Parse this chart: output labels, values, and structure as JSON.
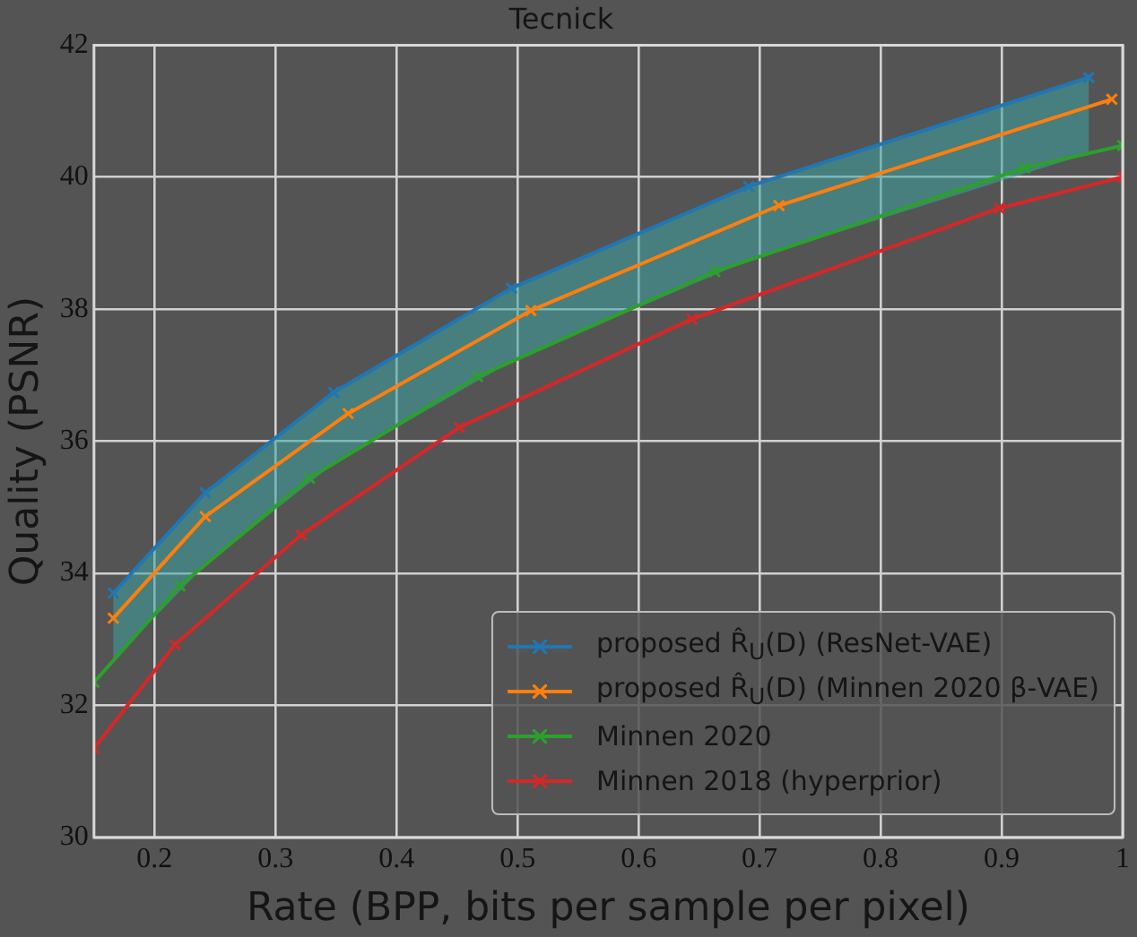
{
  "chart_data": {
    "type": "line",
    "title": "Tecnick",
    "xlabel": "Rate (BPP, bits per sample per pixel)",
    "ylabel": "Quality (PSNR)",
    "xlim": [
      0.15,
      1.0
    ],
    "xticks": [
      0.2,
      0.3,
      0.4,
      0.5,
      0.6,
      0.7,
      0.8,
      0.9,
      1
    ],
    "ylim": [
      30,
      42
    ],
    "yticks": [
      30,
      32,
      34,
      36,
      38,
      40,
      42
    ],
    "grid": true,
    "legend": "bottom right",
    "marker": "cross",
    "line_style": "solid",
    "series": [
      {
        "name": "proposed R̂$_{U}$(D) (ResNet-VAE)",
        "color": "#1f77b4",
        "x": [
          0.166,
          0.242,
          0.348,
          0.495,
          0.691,
          0.972
        ],
        "values": [
          33.7,
          35.22,
          36.74,
          38.32,
          39.86,
          41.51
        ],
        "lower": [
          32.68,
          34.13,
          35.66,
          37.21,
          38.74,
          40.36
        ],
        "upper": [
          33.7,
          35.22,
          36.74,
          38.32,
          39.86,
          41.51
        ]
      },
      {
        "name": "proposed R̂$_{U}$(D) (Minnen 2020 β-VAE)",
        "color": "#ff7f0e",
        "x": [
          0.166,
          0.242,
          0.36,
          0.511,
          0.716,
          0.991
        ],
        "values": [
          33.32,
          34.86,
          36.42,
          37.98,
          39.57,
          41.18
        ]
      },
      {
        "name": "Minnen 2020",
        "color": "#2ca02c",
        "x": [
          0.15,
          0.221,
          0.328,
          0.467,
          0.663,
          0.919,
          1.0
        ],
        "values": [
          32.35,
          33.81,
          35.44,
          36.98,
          38.57,
          40.14,
          40.48
        ]
      },
      {
        "name": "Minnen 2018 (hyperprior)",
        "color": "#d62728",
        "x": [
          0.15,
          0.217,
          0.321,
          0.452,
          0.644,
          0.898,
          1.0
        ],
        "values": [
          31.35,
          32.92,
          34.58,
          36.21,
          37.85,
          39.53,
          40.0
        ]
      }
    ]
  }
}
